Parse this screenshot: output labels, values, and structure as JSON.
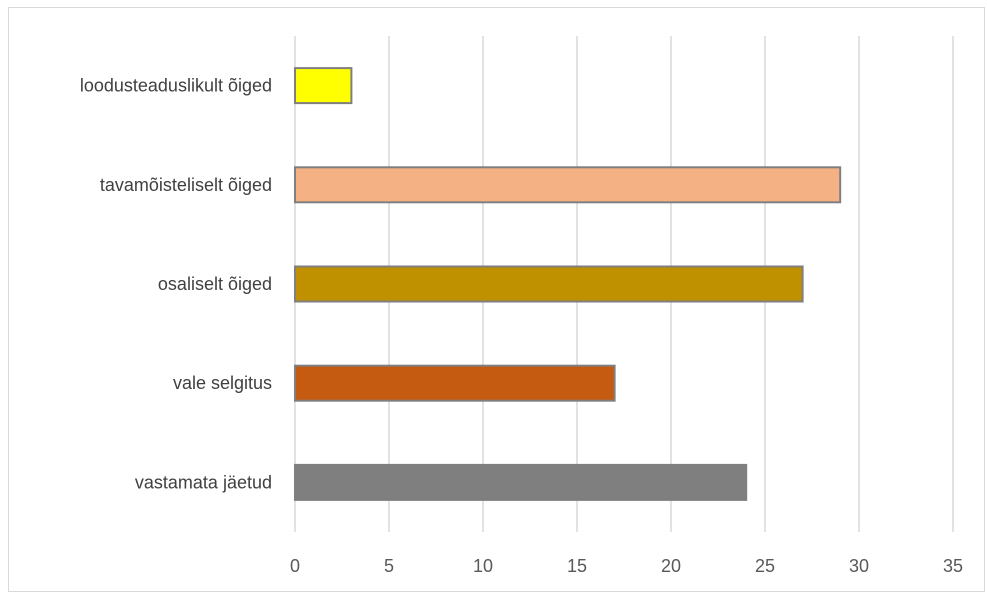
{
  "chart_data": {
    "type": "bar",
    "orientation": "horizontal",
    "categories": [
      "loodusteaduslikult õiged",
      "tavamõisteliselt õiged",
      "osaliselt õiged",
      "vale selgitus",
      "vastamata jäetud"
    ],
    "values": [
      3,
      29,
      27,
      17,
      24
    ],
    "colors": [
      "#ffff00",
      "#f4b183",
      "#bf9000",
      "#c55a11",
      "#7f7f7f"
    ],
    "xlim": [
      0,
      35
    ],
    "xticks": [
      0,
      5,
      10,
      15,
      20,
      25,
      30,
      35
    ],
    "grid": true,
    "legend": "none"
  }
}
